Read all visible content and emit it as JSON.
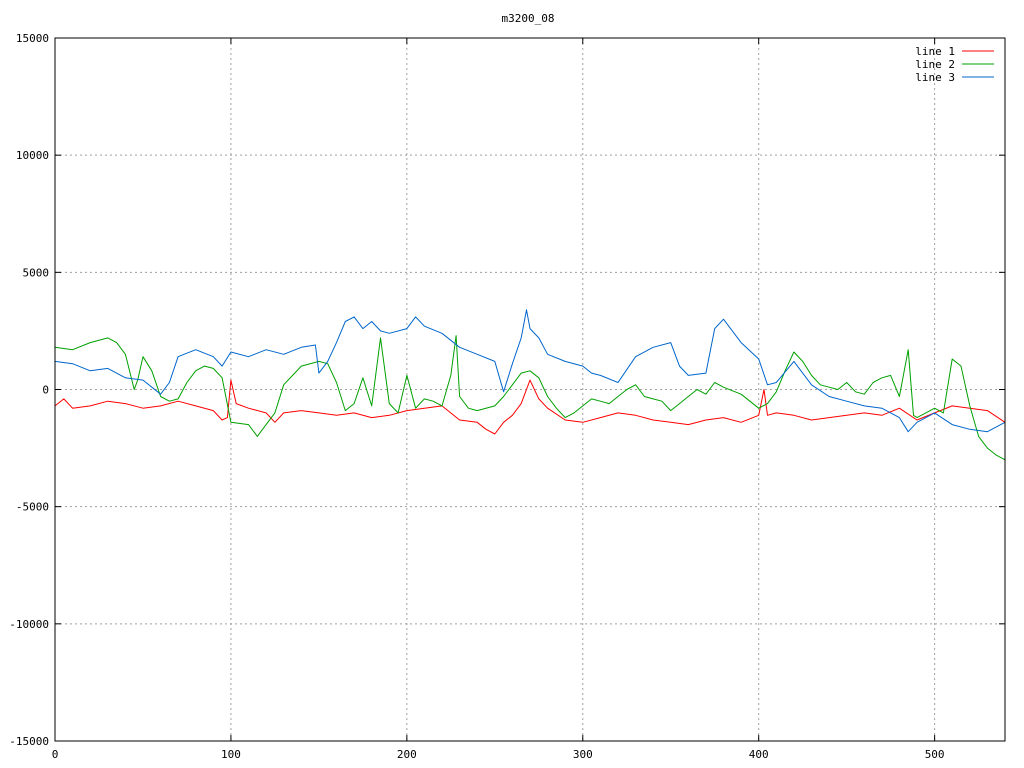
{
  "chart_data": {
    "type": "line",
    "title": "m3200_08",
    "xlabel": "",
    "ylabel": "",
    "xlim": [
      0,
      540
    ],
    "ylim": [
      -15000,
      15000
    ],
    "xticks": [
      0,
      100,
      200,
      300,
      400,
      500
    ],
    "yticks": [
      -15000,
      -10000,
      -5000,
      0,
      5000,
      10000,
      15000
    ],
    "grid": true,
    "legend_position": "top-right",
    "series": [
      {
        "name": "line 1",
        "color": "#ff0000",
        "x": [
          0,
          5,
          10,
          20,
          30,
          40,
          50,
          60,
          70,
          80,
          90,
          95,
          98,
          100,
          103,
          110,
          120,
          125,
          130,
          140,
          150,
          160,
          170,
          180,
          190,
          200,
          210,
          220,
          230,
          240,
          245,
          250,
          255,
          260,
          265,
          270,
          275,
          280,
          290,
          300,
          310,
          320,
          330,
          340,
          350,
          360,
          370,
          380,
          390,
          400,
          403,
          405,
          410,
          420,
          430,
          440,
          450,
          460,
          470,
          480,
          490,
          500,
          510,
          520,
          530,
          540
        ],
        "y": [
          -700,
          -400,
          -800,
          -700,
          -500,
          -600,
          -800,
          -700,
          -500,
          -700,
          -900,
          -1300,
          -1200,
          400,
          -600,
          -800,
          -1000,
          -1400,
          -1000,
          -900,
          -1000,
          -1100,
          -1000,
          -1200,
          -1100,
          -900,
          -800,
          -700,
          -1300,
          -1400,
          -1700,
          -1900,
          -1400,
          -1100,
          -600,
          400,
          -400,
          -800,
          -1300,
          -1400,
          -1200,
          -1000,
          -1100,
          -1300,
          -1400,
          -1500,
          -1300,
          -1200,
          -1400,
          -1100,
          0,
          -1100,
          -1000,
          -1100,
          -1300,
          -1200,
          -1100,
          -1000,
          -1100,
          -800,
          -1300,
          -1000,
          -700,
          -800,
          -900,
          -1400
        ]
      },
      {
        "name": "line 2",
        "color": "#00a000",
        "x": [
          0,
          10,
          20,
          30,
          35,
          40,
          45,
          47,
          50,
          55,
          60,
          65,
          70,
          75,
          80,
          85,
          90,
          95,
          100,
          110,
          115,
          120,
          125,
          130,
          140,
          150,
          155,
          160,
          165,
          170,
          175,
          180,
          185,
          190,
          195,
          200,
          205,
          210,
          215,
          220,
          225,
          228,
          230,
          235,
          240,
          250,
          255,
          260,
          265,
          270,
          275,
          280,
          285,
          290,
          295,
          300,
          305,
          310,
          315,
          320,
          325,
          330,
          335,
          340,
          345,
          350,
          355,
          360,
          365,
          370,
          375,
          380,
          390,
          400,
          405,
          410,
          415,
          420,
          425,
          430,
          435,
          440,
          445,
          450,
          455,
          460,
          465,
          470,
          475,
          480,
          485,
          488,
          490,
          495,
          500,
          505,
          510,
          515,
          520,
          525,
          530,
          535,
          540
        ],
        "y": [
          1800,
          1700,
          2000,
          2200,
          2000,
          1500,
          0,
          400,
          1400,
          800,
          -300,
          -500,
          -400,
          300,
          800,
          1000,
          900,
          500,
          -1400,
          -1500,
          -2000,
          -1500,
          -1000,
          200,
          1000,
          1200,
          1100,
          300,
          -900,
          -600,
          500,
          -700,
          2200,
          -600,
          -1000,
          600,
          -800,
          -400,
          -500,
          -700,
          600,
          2300,
          -300,
          -800,
          -900,
          -700,
          -300,
          200,
          700,
          800,
          500,
          -300,
          -800,
          -1200,
          -1000,
          -700,
          -400,
          -500,
          -600,
          -300,
          0,
          200,
          -300,
          -400,
          -500,
          -900,
          -600,
          -300,
          0,
          -200,
          300,
          100,
          -200,
          -800,
          -600,
          -100,
          800,
          1600,
          1200,
          600,
          200,
          100,
          0,
          300,
          -100,
          -200,
          300,
          500,
          600,
          -300,
          1700,
          -1100,
          -1200,
          -1000,
          -800,
          -1000,
          1300,
          1000,
          -700,
          -2000,
          -2500,
          -2800,
          -3000
        ]
      },
      {
        "name": "line 3",
        "color": "#0066cc",
        "x": [
          0,
          10,
          20,
          30,
          40,
          50,
          60,
          65,
          70,
          80,
          90,
          95,
          100,
          110,
          120,
          130,
          140,
          148,
          150,
          155,
          160,
          165,
          170,
          175,
          180,
          185,
          190,
          200,
          205,
          210,
          220,
          230,
          240,
          250,
          255,
          260,
          265,
          268,
          270,
          275,
          280,
          290,
          300,
          305,
          310,
          320,
          330,
          340,
          350,
          355,
          360,
          370,
          375,
          380,
          390,
          400,
          405,
          410,
          420,
          430,
          440,
          450,
          460,
          470,
          480,
          485,
          490,
          500,
          510,
          520,
          530,
          540
        ],
        "y": [
          1200,
          1100,
          800,
          900,
          500,
          400,
          -200,
          300,
          1400,
          1700,
          1400,
          1000,
          1600,
          1400,
          1700,
          1500,
          1800,
          1900,
          700,
          1200,
          2000,
          2900,
          3100,
          2600,
          2900,
          2500,
          2400,
          2600,
          3100,
          2700,
          2400,
          1800,
          1500,
          1200,
          -100,
          1100,
          2200,
          3400,
          2600,
          2200,
          1500,
          1200,
          1000,
          700,
          600,
          300,
          1400,
          1800,
          2000,
          1000,
          600,
          700,
          2600,
          3000,
          2000,
          1300,
          200,
          300,
          1200,
          200,
          -300,
          -500,
          -700,
          -800,
          -1200,
          -1800,
          -1400,
          -1000,
          -1500,
          -1700,
          -1800,
          -1400
        ]
      }
    ]
  }
}
